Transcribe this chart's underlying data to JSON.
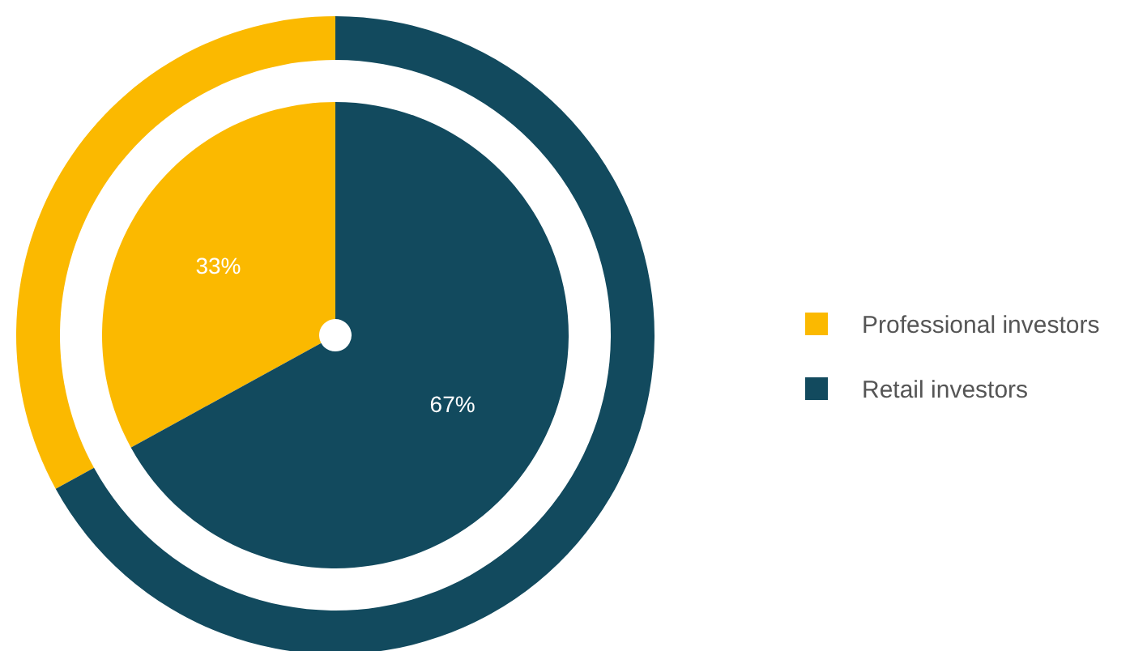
{
  "chart_data": {
    "type": "pie",
    "categories": [
      "Professional investors",
      "Retail investors"
    ],
    "colors": [
      "#fbb900",
      "#124a5e"
    ],
    "series": [
      {
        "values": [
          33,
          67
        ],
        "value_labels": [
          "33%",
          "67%"
        ]
      },
      {
        "type": "donut",
        "values": [
          33,
          67
        ]
      }
    ],
    "legend": "right"
  }
}
